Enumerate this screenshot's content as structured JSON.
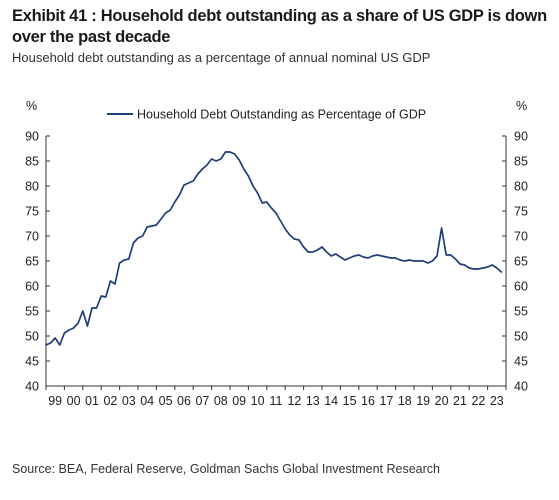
{
  "chart_data": {
    "type": "line",
    "title": "Exhibit 41 : Household debt outstanding as a share of US GDP is down over the past decade",
    "subtitle": "Household debt outstanding as a percentage of annual nominal US GDP",
    "y_unit_left": "%",
    "y_unit_right": "%",
    "ylim": [
      40,
      90
    ],
    "yticks": [
      40,
      45,
      50,
      55,
      60,
      65,
      70,
      75,
      80,
      85,
      90
    ],
    "xlim": [
      1999,
      2024
    ],
    "xtick_labels": [
      "99",
      "00",
      "01",
      "02",
      "03",
      "04",
      "05",
      "06",
      "07",
      "08",
      "09",
      "10",
      "11",
      "12",
      "13",
      "14",
      "15",
      "16",
      "17",
      "18",
      "19",
      "20",
      "21",
      "22",
      "23"
    ],
    "grid": false,
    "legend_position": "top-center",
    "series": [
      {
        "name": "Household Debt Outstanding as Percentage of GDP",
        "color": "#1f3d7a",
        "x": [
          1999.0,
          1999.25,
          1999.5,
          1999.75,
          2000.0,
          2000.25,
          2000.5,
          2000.75,
          2001.0,
          2001.25,
          2001.5,
          2001.75,
          2002.0,
          2002.25,
          2002.5,
          2002.75,
          2003.0,
          2003.25,
          2003.5,
          2003.75,
          2004.0,
          2004.25,
          2004.5,
          2004.75,
          2005.0,
          2005.25,
          2005.5,
          2005.75,
          2006.0,
          2006.25,
          2006.5,
          2006.75,
          2007.0,
          2007.25,
          2007.5,
          2007.75,
          2008.0,
          2008.25,
          2008.5,
          2008.75,
          2009.0,
          2009.25,
          2009.5,
          2009.75,
          2010.0,
          2010.25,
          2010.5,
          2010.75,
          2011.0,
          2011.25,
          2011.5,
          2011.75,
          2012.0,
          2012.25,
          2012.5,
          2012.75,
          2013.0,
          2013.25,
          2013.5,
          2013.75,
          2014.0,
          2014.25,
          2014.5,
          2014.75,
          2015.0,
          2015.25,
          2015.5,
          2015.75,
          2016.0,
          2016.25,
          2016.5,
          2016.75,
          2017.0,
          2017.25,
          2017.5,
          2017.75,
          2018.0,
          2018.25,
          2018.5,
          2018.75,
          2019.0,
          2019.25,
          2019.5,
          2019.75,
          2020.0,
          2020.25,
          2020.5,
          2020.75,
          2021.0,
          2021.25,
          2021.5,
          2021.75,
          2022.0,
          2022.25,
          2022.5,
          2022.75,
          2023.0,
          2023.25,
          2023.5,
          2023.75
        ],
        "values": [
          48.2,
          48.6,
          49.6,
          48.2,
          50.6,
          51.2,
          51.6,
          52.6,
          55.0,
          52.0,
          55.6,
          55.6,
          58.0,
          57.8,
          61.0,
          60.4,
          64.6,
          65.2,
          65.4,
          68.6,
          69.6,
          70.0,
          71.8,
          72.0,
          72.2,
          73.4,
          74.6,
          75.2,
          76.8,
          78.2,
          80.2,
          80.6,
          81.0,
          82.4,
          83.4,
          84.2,
          85.4,
          85.0,
          85.4,
          86.8,
          86.8,
          86.4,
          85.2,
          83.4,
          82.0,
          80.0,
          78.6,
          76.6,
          76.8,
          75.6,
          74.6,
          73.0,
          71.4,
          70.2,
          69.4,
          69.2,
          67.8,
          66.8,
          66.8,
          67.2,
          67.8,
          66.8,
          66.0,
          66.4,
          65.8,
          65.2,
          65.6,
          66.0,
          66.2,
          65.8,
          65.6,
          66.0,
          66.2,
          66.0,
          65.8,
          65.6,
          65.6,
          65.2,
          65.0,
          65.2,
          65.0,
          65.0,
          65.0,
          64.6,
          65.0,
          66.0,
          71.6,
          66.2,
          66.2,
          65.4,
          64.4,
          64.2,
          63.6,
          63.4,
          63.4,
          63.6,
          63.8,
          64.2,
          63.6,
          62.8
        ]
      }
    ]
  },
  "source": "Source: BEA, Federal Reserve, Goldman Sachs Global Investment Research"
}
